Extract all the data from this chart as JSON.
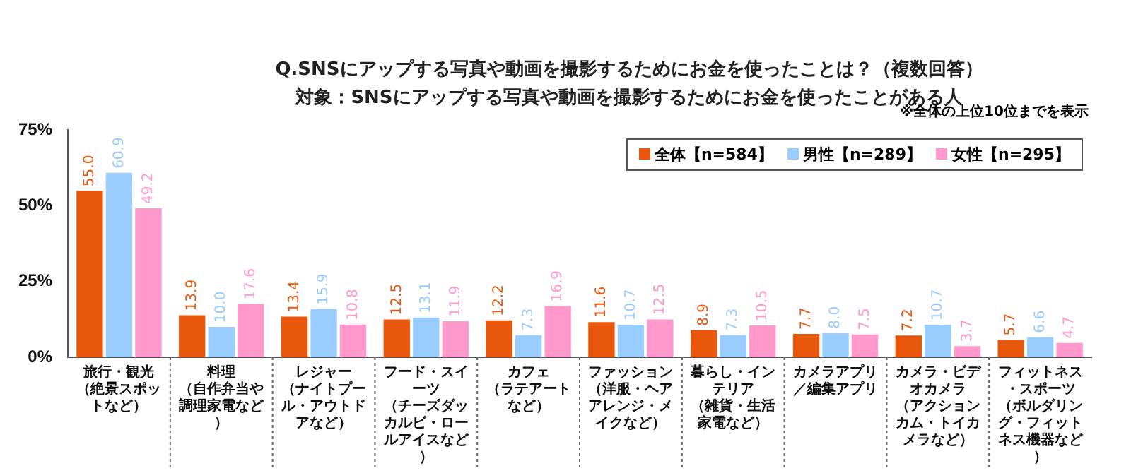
{
  "chart_data": {
    "type": "bar",
    "title": "Q.SNSにアップする写真や動画を撮影するためにお金を使ったことは？（複数回答）",
    "subtitle": "対象：SNSにアップする写真や動画を撮影するためにお金を使ったことがある人",
    "annotations": [
      "※全体の上位10位までを表示"
    ],
    "categories": [
      "旅行・観光（絶景スポットなど）",
      "料理（自作弁当や調理家電など）",
      "レジャー（ナイトプール・アウトドアなど）",
      "フード・スイーツ（チーズダッカルビ・ロールアイスなど）",
      "カフェ（ラテアートなど）",
      "ファッション（洋服・ヘアアレンジ・メイクなど）",
      "暮らし・インテリア（雑貨・生活家電など）",
      "カメラアプリ／編集アプリ",
      "カメラ・ビデオカメラ（アクションカム・トイカメラなど）",
      "フィットネス・スポーツ（ボルダリング・フィットネス機器など）"
    ],
    "series": [
      {
        "name": "全体【n=584】",
        "color": "#e8570c",
        "values": [
          55.0,
          13.9,
          13.4,
          12.5,
          12.2,
          11.6,
          8.9,
          7.7,
          7.2,
          5.7
        ],
        "value_labels": [
          "55.0",
          "13.9",
          "13.4",
          "12.5",
          "12.2",
          "11.6",
          "8.9",
          "7.7",
          "7.2",
          "5.7"
        ]
      },
      {
        "name": "男性【n=289】",
        "color": "#99ccff",
        "values": [
          60.9,
          10.0,
          15.9,
          13.1,
          7.3,
          10.7,
          7.3,
          8.0,
          10.7,
          6.6
        ],
        "value_labels": [
          "60.9",
          "10.0",
          "15.9",
          "13.1",
          "7.3",
          "10.7",
          "7.3",
          "8.0",
          "10.7",
          "6.6"
        ]
      },
      {
        "name": "女性【n=295】",
        "color": "#ff99cc",
        "values": [
          49.2,
          17.6,
          10.8,
          11.9,
          16.9,
          12.5,
          10.5,
          7.5,
          3.7,
          4.7
        ],
        "value_labels": [
          "49.2",
          "17.6",
          "10.8",
          "11.9",
          "16.9",
          "12.5",
          "10.5",
          "7.5",
          "3.7",
          "4.7"
        ]
      }
    ],
    "ylim": [
      0,
      75
    ],
    "yticks": [
      {
        "value": 0,
        "label": "0%"
      },
      {
        "value": 25,
        "label": "25%"
      },
      {
        "value": 50,
        "label": "50%"
      },
      {
        "value": 75,
        "label": "75%"
      }
    ],
    "grid": false,
    "legend": "top right"
  }
}
